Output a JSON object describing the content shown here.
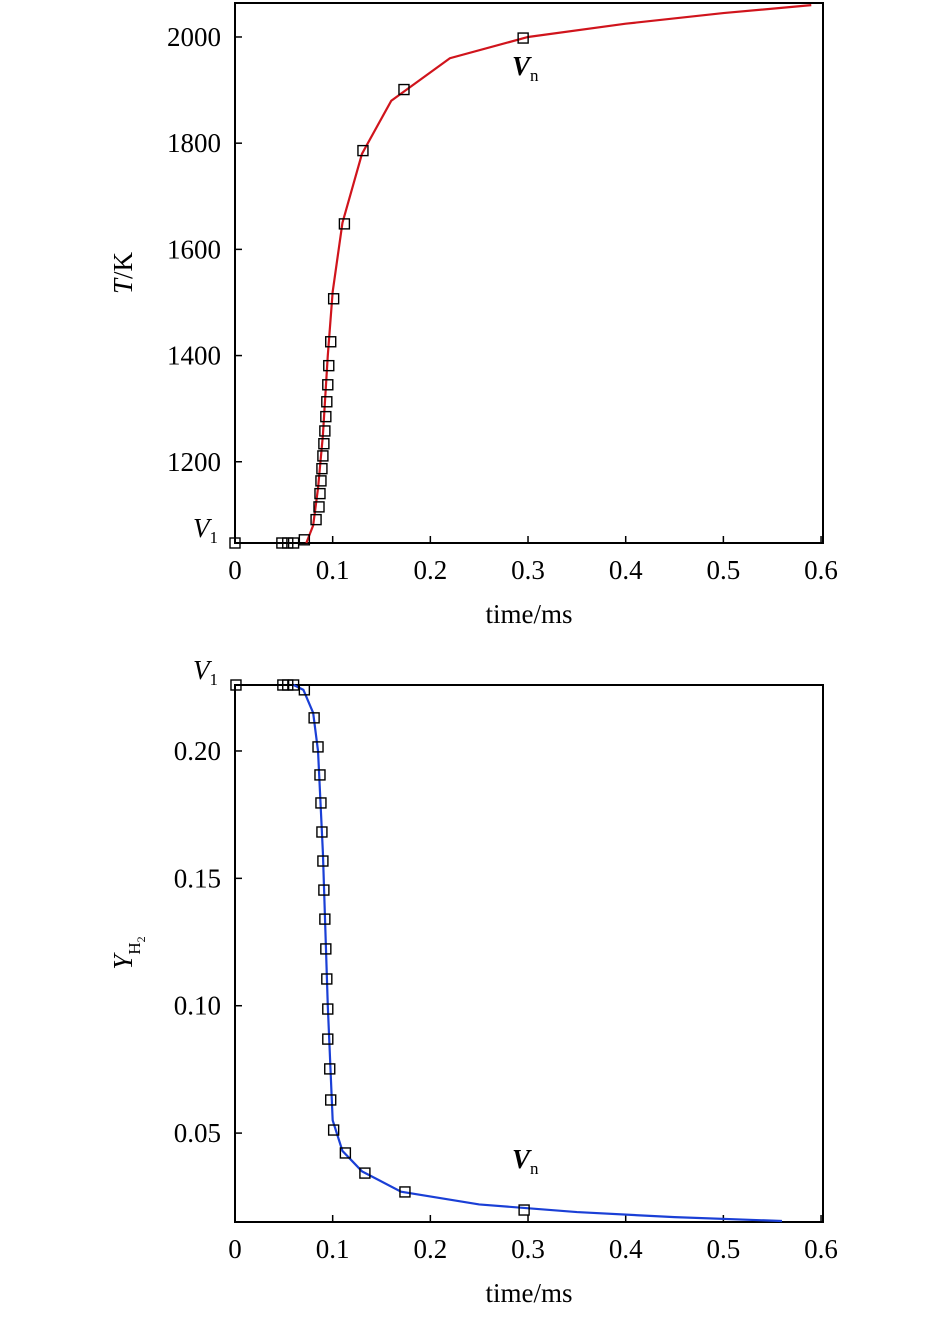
{
  "chart_data": [
    {
      "type": "line",
      "y_label": {
        "italic": "T",
        "rest": "/K"
      },
      "x_label": "time/ms",
      "xlim": [
        0,
        0.602
      ],
      "xticks": [
        0,
        0.1,
        0.2,
        0.3,
        0.4,
        0.5,
        0.6
      ],
      "ylim": [
        1047,
        2064
      ],
      "yticks": [
        1200,
        1400,
        1600,
        1800,
        2000
      ],
      "line": {
        "color": "#d0141c",
        "x": [
          0.073,
          0.08,
          0.085,
          0.09,
          0.095,
          0.1,
          0.11,
          0.13,
          0.16,
          0.22,
          0.3,
          0.4,
          0.5,
          0.59
        ],
        "y": [
          1047,
          1080,
          1150,
          1250,
          1400,
          1520,
          1650,
          1780,
          1880,
          1960,
          2000,
          2025,
          2045,
          2060
        ]
      },
      "markers": {
        "color": "#000000",
        "x": [
          0,
          0.048,
          0.054,
          0.06,
          0.071,
          0.083,
          0.086,
          0.087,
          0.088,
          0.089,
          0.09,
          0.091,
          0.092,
          0.093,
          0.094,
          0.095,
          0.096,
          0.098,
          0.101,
          0.112,
          0.131,
          0.173,
          0.295
        ],
        "y": [
          1047,
          1047,
          1047,
          1047,
          1053,
          1091,
          1115,
          1140,
          1164,
          1187,
          1211,
          1234,
          1258,
          1285,
          1313,
          1345,
          1381,
          1426,
          1507,
          1648,
          1786,
          1901,
          1998
        ]
      },
      "annotations": [
        {
          "main": "V",
          "sub": "1"
        },
        {
          "main": "V",
          "sub": "n"
        }
      ]
    },
    {
      "type": "line",
      "y_label": {
        "main": "Y",
        "sub": "H",
        "subsub": "2"
      },
      "x_label": "time/ms",
      "xlim": [
        0,
        0.602
      ],
      "xticks": [
        0,
        0.1,
        0.2,
        0.3,
        0.4,
        0.5,
        0.6
      ],
      "ylim": [
        0.0151,
        0.2259
      ],
      "yticks": [
        0.05,
        {
          "value": 0.1,
          "label": "0.10"
        },
        0.15,
        {
          "value": 0.2,
          "label": "0.20"
        }
      ],
      "line": {
        "color": "#1a3fd6",
        "x": [
          0.06,
          0.07,
          0.08,
          0.085,
          0.09,
          0.095,
          0.1,
          0.11,
          0.13,
          0.17,
          0.25,
          0.35,
          0.45,
          0.56
        ],
        "y": [
          0.2259,
          0.224,
          0.215,
          0.2,
          0.16,
          0.1,
          0.055,
          0.043,
          0.035,
          0.027,
          0.022,
          0.019,
          0.017,
          0.0155
        ]
      },
      "markers": {
        "color": "#000000",
        "x": [
          0.001,
          0.049,
          0.054,
          0.06,
          0.071,
          0.081,
          0.085,
          0.087,
          0.088,
          0.089,
          0.09,
          0.091,
          0.092,
          0.093,
          0.094,
          0.095,
          0.095,
          0.097,
          0.098,
          0.101,
          0.113,
          0.133,
          0.174,
          0.296
        ],
        "y": [
          0.2259,
          0.2259,
          0.2259,
          0.2259,
          0.224,
          0.213,
          0.2016,
          0.1906,
          0.1796,
          0.1682,
          0.1568,
          0.1454,
          0.134,
          0.1223,
          0.1105,
          0.0987,
          0.0869,
          0.0752,
          0.063,
          0.0512,
          0.0422,
          0.0343,
          0.0269,
          0.0198
        ]
      },
      "annotations": [
        {
          "main": "V",
          "sub": "1"
        },
        {
          "main": "V",
          "sub": "n"
        }
      ]
    }
  ]
}
